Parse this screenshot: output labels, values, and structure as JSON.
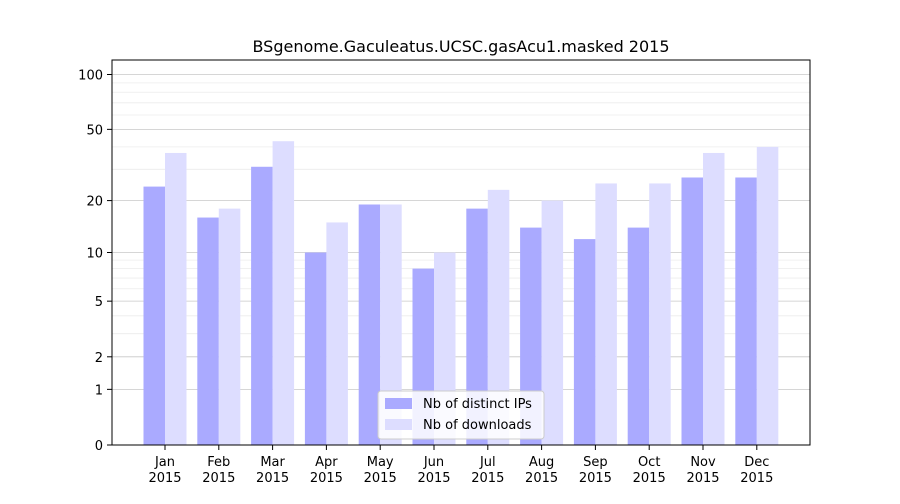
{
  "chart_data": {
    "type": "bar",
    "title": "BSgenome.Gaculeatus.UCSC.gasAcu1.masked 2015",
    "xlabel": "",
    "ylabel": "",
    "yscale": "log(1+y)",
    "ylim": [
      0,
      120
    ],
    "yticks": [
      0,
      1,
      2,
      5,
      10,
      20,
      50,
      100
    ],
    "grid": true,
    "legend_position": "bottom-center",
    "categories": [
      [
        "Jan",
        "2015"
      ],
      [
        "Feb",
        "2015"
      ],
      [
        "Mar",
        "2015"
      ],
      [
        "Apr",
        "2015"
      ],
      [
        "May",
        "2015"
      ],
      [
        "Jun",
        "2015"
      ],
      [
        "Jul",
        "2015"
      ],
      [
        "Aug",
        "2015"
      ],
      [
        "Sep",
        "2015"
      ],
      [
        "Oct",
        "2015"
      ],
      [
        "Nov",
        "2015"
      ],
      [
        "Dec",
        "2015"
      ]
    ],
    "series": [
      {
        "name": "Nb of distinct IPs",
        "color": "#aaaaff",
        "values": [
          24,
          16,
          31,
          10,
          19,
          8,
          18,
          14,
          12,
          14,
          27,
          27
        ]
      },
      {
        "name": "Nb of downloads",
        "color": "#ddddff",
        "values": [
          37,
          18,
          43,
          15,
          19,
          10,
          23,
          20,
          25,
          25,
          37,
          40
        ]
      }
    ]
  }
}
